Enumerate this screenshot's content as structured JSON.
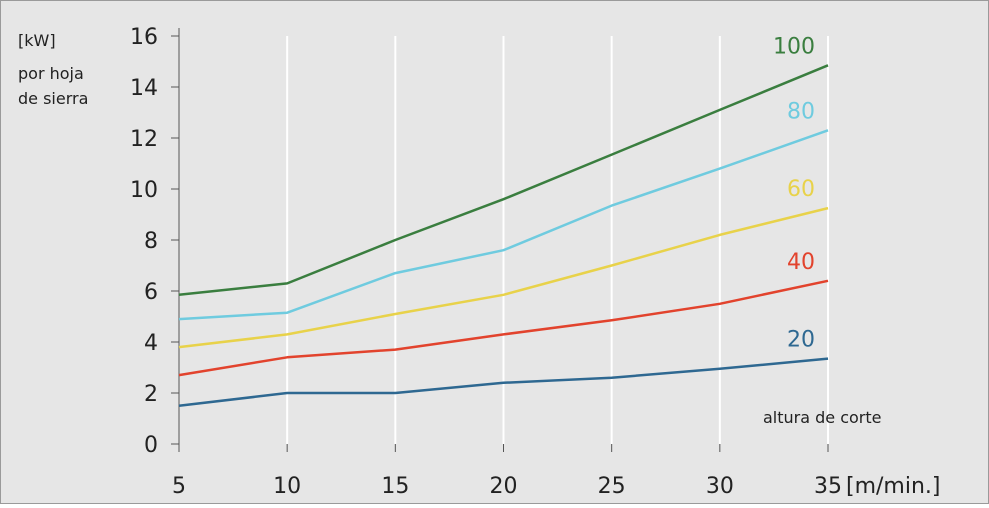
{
  "chart_data": {
    "type": "line",
    "x": [
      5,
      10,
      15,
      20,
      25,
      30,
      35
    ],
    "x_ticks": [
      "5",
      "10",
      "15",
      "20",
      "25",
      "30",
      "35"
    ],
    "y_ticks": [
      "0",
      "2",
      "4",
      "6",
      "8",
      "10",
      "12",
      "14",
      "16"
    ],
    "xlim": [
      5,
      35
    ],
    "ylim": [
      0,
      16
    ],
    "x_unit": "[m/min.]",
    "y_unit": "[kW]",
    "y_caption_line1": "por hoja",
    "y_caption_line2": "de sierra",
    "series_caption": "altura de corte",
    "grid": true,
    "background": "#e6e6e6",
    "series": [
      {
        "name": "20",
        "color": "#2e6891",
        "values": [
          1.5,
          2.0,
          2.0,
          2.4,
          2.6,
          2.95,
          3.35
        ]
      },
      {
        "name": "40",
        "color": "#e2432d",
        "values": [
          2.7,
          3.4,
          3.7,
          4.3,
          4.85,
          5.5,
          6.4
        ]
      },
      {
        "name": "60",
        "color": "#e8d24a",
        "values": [
          3.8,
          4.3,
          5.1,
          5.85,
          7.0,
          8.2,
          9.25
        ]
      },
      {
        "name": "80",
        "color": "#6fcbdf",
        "values": [
          4.9,
          5.15,
          6.7,
          7.6,
          9.35,
          10.8,
          12.3
        ]
      },
      {
        "name": "100",
        "color": "#3a7e3f",
        "values": [
          5.85,
          6.3,
          8.0,
          9.6,
          11.35,
          13.1,
          14.85
        ]
      }
    ]
  }
}
